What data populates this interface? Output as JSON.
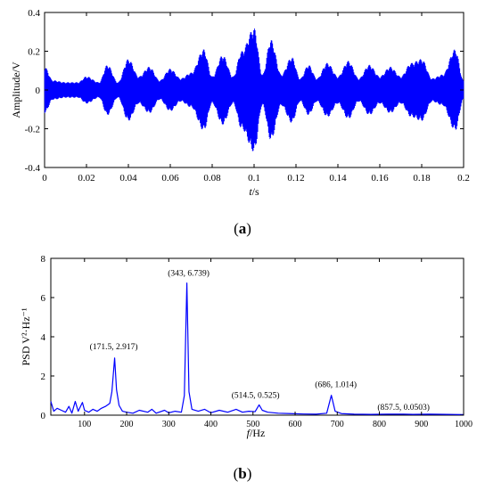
{
  "chart_data": [
    {
      "type": "line",
      "panel_label": "(a)",
      "xlabel": "t/s",
      "ylabel": "Amplitude/V",
      "xlim": [
        0,
        0.2
      ],
      "ylim": [
        -0.4,
        0.4
      ],
      "xticks": [
        "0",
        "0.02",
        "0.04",
        "0.06",
        "0.08",
        "0.1",
        "0.12",
        "0.14",
        "0.16",
        "0.18",
        "0.2"
      ],
      "yticks": [
        "-0.4",
        "-0.2",
        "0",
        "0.2",
        "0.4"
      ],
      "grid": false,
      "series": [
        {
          "color": "#0000ff",
          "envelope": {
            "t": [
              0,
              0.004,
              0.01,
              0.016,
              0.02,
              0.026,
              0.03,
              0.035,
              0.04,
              0.045,
              0.05,
              0.055,
              0.06,
              0.065,
              0.07,
              0.076,
              0.08,
              0.085,
              0.09,
              0.094,
              0.1,
              0.104,
              0.108,
              0.113,
              0.118,
              0.122,
              0.126,
              0.13,
              0.135,
              0.14,
              0.145,
              0.15,
              0.155,
              0.16,
              0.165,
              0.17,
              0.175,
              0.18,
              0.185,
              0.19,
              0.196,
              0.2
            ],
            "amplitude": [
              0.12,
              0.05,
              0.04,
              0.04,
              0.07,
              0.04,
              0.13,
              0.04,
              0.16,
              0.07,
              0.12,
              0.05,
              0.11,
              0.06,
              0.09,
              0.21,
              0.07,
              0.18,
              0.07,
              0.2,
              0.32,
              0.08,
              0.26,
              0.08,
              0.17,
              0.06,
              0.13,
              0.06,
              0.14,
              0.07,
              0.15,
              0.06,
              0.13,
              0.07,
              0.12,
              0.07,
              0.14,
              0.16,
              0.06,
              0.08,
              0.21,
              0.05
            ]
          }
        }
      ]
    },
    {
      "type": "line",
      "panel_label": "(b)",
      "xlabel": "f/Hz",
      "ylabel": "PSD V²·Hz⁻¹",
      "xlim": [
        20,
        1000
      ],
      "ylim": [
        0,
        8
      ],
      "xticks": [
        "100",
        "200",
        "300",
        "400",
        "500",
        "600",
        "700",
        "800",
        "900",
        "1000"
      ],
      "yticks": [
        "0",
        "2",
        "4",
        "6",
        "8"
      ],
      "grid": false,
      "series": [
        {
          "color": "#0000ff",
          "x": [
            20,
            27,
            35,
            45,
            55,
            63,
            70,
            78,
            85,
            95,
            100,
            110,
            120,
            130,
            140,
            150,
            160,
            165,
            171.5,
            176,
            182,
            190,
            200,
            215,
            230,
            250,
            260,
            270,
            290,
            300,
            315,
            330,
            337,
            343,
            348,
            355,
            370,
            385,
            400,
            420,
            440,
            460,
            475,
            490,
            505,
            514.5,
            522,
            535,
            560,
            590,
            620,
            650,
            675,
            686,
            695,
            710,
            740,
            780,
            820,
            857.5,
            880,
            920,
            960,
            1000
          ],
          "y": [
            0.7,
            0.2,
            0.35,
            0.25,
            0.15,
            0.45,
            0.1,
            0.7,
            0.2,
            0.65,
            0.25,
            0.15,
            0.3,
            0.2,
            0.35,
            0.45,
            0.6,
            1.2,
            2.917,
            1.3,
            0.5,
            0.2,
            0.15,
            0.1,
            0.25,
            0.15,
            0.3,
            0.1,
            0.25,
            0.12,
            0.2,
            0.15,
            1.0,
            6.739,
            1.2,
            0.3,
            0.2,
            0.3,
            0.12,
            0.25,
            0.15,
            0.3,
            0.15,
            0.2,
            0.18,
            0.525,
            0.25,
            0.15,
            0.1,
            0.08,
            0.06,
            0.05,
            0.1,
            1.014,
            0.2,
            0.08,
            0.05,
            0.04,
            0.05,
            0.0503,
            0.04,
            0.05,
            0.04,
            0.03
          ]
        }
      ],
      "annotations": [
        {
          "text": "(171.5, 2.917)",
          "x": 171.5,
          "y": 2.917
        },
        {
          "text": "(343, 6.739)",
          "x": 343,
          "y": 6.739
        },
        {
          "text": "(514.5, 0.525)",
          "x": 514.5,
          "y": 0.525
        },
        {
          "text": "(686, 1.014)",
          "x": 686,
          "y": 1.014
        },
        {
          "text": "(857.5, 0.0503)",
          "x": 857.5,
          "y": 0.0503
        }
      ]
    }
  ]
}
